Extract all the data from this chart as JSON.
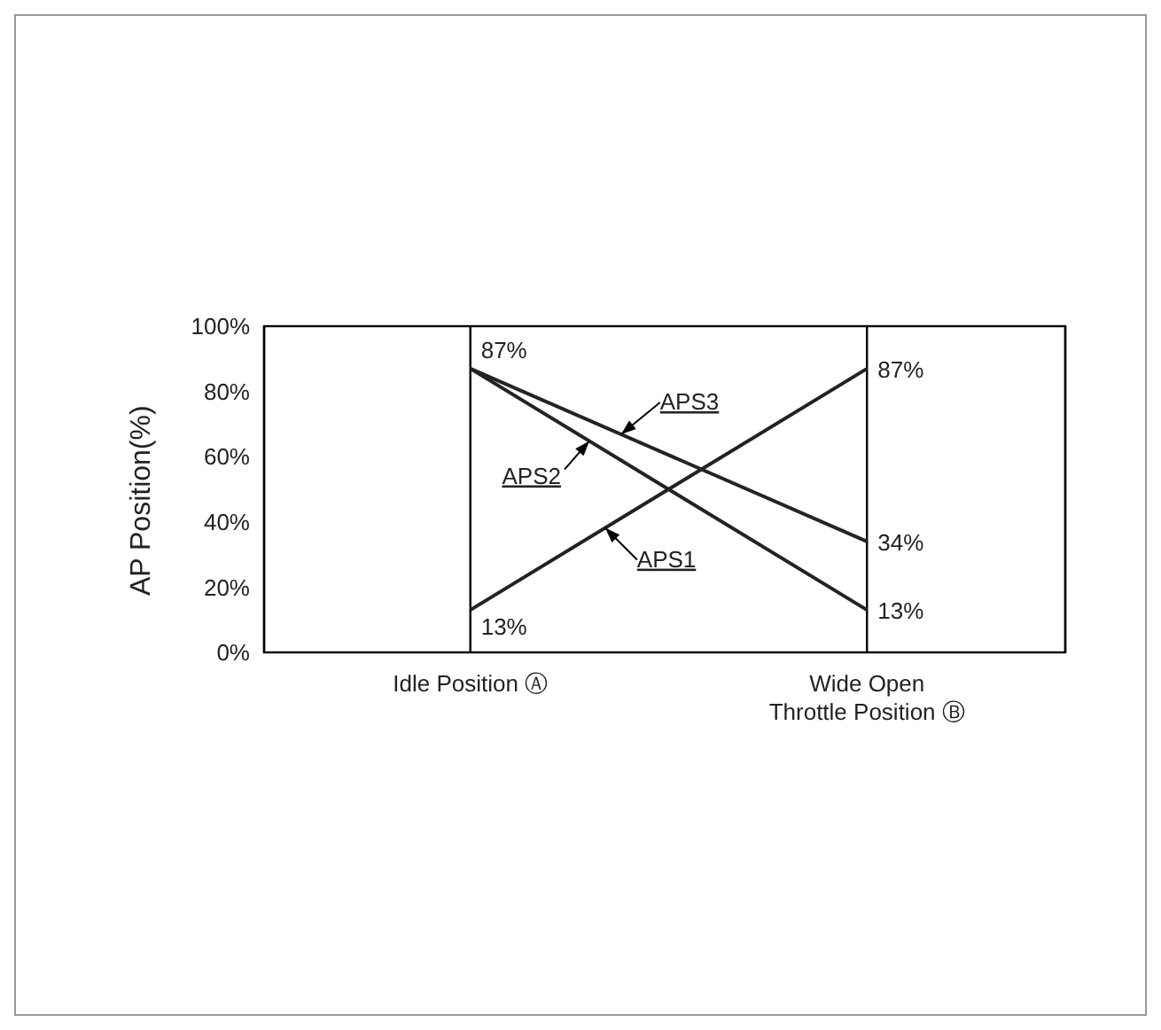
{
  "chart_data": {
    "type": "line",
    "ylabel": "AP Position(%)",
    "categories": [
      "Idle Position Ⓐ",
      "Wide Open Throttle Position Ⓑ"
    ],
    "series": [
      {
        "name": "APS1",
        "color": "#222222",
        "values": [
          13,
          87
        ],
        "value_labels": [
          "13%",
          "87%"
        ]
      },
      {
        "name": "APS2",
        "color": "#232323",
        "values": [
          87,
          13
        ],
        "value_labels": [
          "87%",
          "13%"
        ]
      },
      {
        "name": "APS3",
        "color": "#242424",
        "values": [
          87,
          34
        ],
        "value_labels": [
          null,
          "34%"
        ]
      }
    ],
    "ylim": [
      0,
      100
    ],
    "yticks": [
      {
        "value": 0,
        "label": "0%"
      },
      {
        "value": 20,
        "label": "20%"
      },
      {
        "value": 40,
        "label": "40%"
      },
      {
        "value": 60,
        "label": "60%"
      },
      {
        "value": 80,
        "label": "80%"
      },
      {
        "value": 100,
        "label": "100%"
      }
    ],
    "grid": "x",
    "legend": false,
    "marker": "none",
    "line_style": "solid"
  }
}
